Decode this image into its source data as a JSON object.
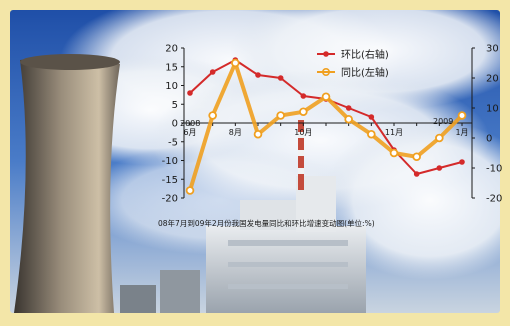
{
  "chart_data": {
    "type": "line",
    "caption": "08年7月到09年2月份我国发电量同比和环比增速变动图(单位:%)",
    "year_start_label": "2008",
    "year_end_label": "2009",
    "x_tick_labels": [
      "6月",
      "8月",
      "10月",
      "11月",
      "1月"
    ],
    "left_axis": {
      "ylim": [
        -20,
        20
      ],
      "ticks": [
        -20,
        -15,
        -10,
        -5,
        0,
        5,
        10,
        15,
        20
      ]
    },
    "right_axis": {
      "ylim": [
        -20,
        30
      ],
      "ticks": [
        -20,
        -10,
        0,
        10,
        20,
        30
      ]
    },
    "x": [
      1,
      2,
      3,
      4,
      5,
      6,
      7,
      8,
      9,
      10,
      11,
      12,
      13
    ],
    "series": [
      {
        "name": "环比(右轴)",
        "axis": "right",
        "color": "#d42a2a",
        "marker": "dot",
        "values": [
          15,
          22,
          26,
          21,
          20,
          14,
          13,
          10,
          7,
          -4,
          -12,
          -10,
          -8
        ]
      },
      {
        "name": "同比(左轴)",
        "axis": "left",
        "color": "#f0a020",
        "marker": "circle",
        "values": [
          -18,
          2,
          16,
          -3,
          2,
          3,
          7,
          1,
          -3,
          -8,
          -9,
          -4,
          2
        ]
      }
    ]
  },
  "colors": {
    "sky": "#2f62b8",
    "cloud": "#e8edf4",
    "frame": "#f3e6a8",
    "axis": "#1a1a1a"
  }
}
